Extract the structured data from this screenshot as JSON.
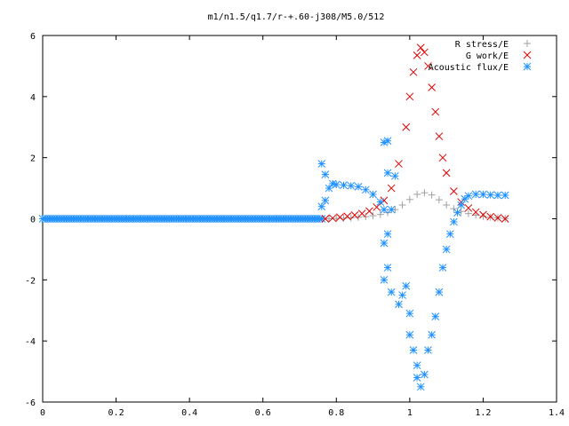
{
  "chart_data": {
    "type": "scatter",
    "title": "m1/n1.5/q1.7/r-+.60-j308/M5.0/512",
    "xlabel": "",
    "ylabel": "",
    "xlim": [
      0,
      1.4
    ],
    "ylim": [
      -6,
      6
    ],
    "xticks": [
      "0",
      "0.2",
      "0.4",
      "0.6",
      "0.8",
      "1",
      "1.2",
      "1.4"
    ],
    "yticks": [
      "-6",
      "-4",
      "-2",
      "0",
      "2",
      "4",
      "6"
    ],
    "grid": false,
    "legend_position": "top-right",
    "series": [
      {
        "name": "R stress/E",
        "marker": "plus",
        "color": "#a0a0a0",
        "points": [
          [
            0.78,
            0.0
          ],
          [
            0.8,
            0.01
          ],
          [
            0.82,
            0.02
          ],
          [
            0.84,
            0.03
          ],
          [
            0.86,
            0.05
          ],
          [
            0.88,
            0.07
          ],
          [
            0.9,
            0.1
          ],
          [
            0.92,
            0.14
          ],
          [
            0.94,
            0.2
          ],
          [
            0.96,
            0.3
          ],
          [
            0.98,
            0.45
          ],
          [
            1.0,
            0.63
          ],
          [
            1.02,
            0.8
          ],
          [
            1.04,
            0.85
          ],
          [
            1.06,
            0.78
          ],
          [
            1.08,
            0.62
          ],
          [
            1.1,
            0.45
          ],
          [
            1.12,
            0.33
          ],
          [
            1.14,
            0.24
          ],
          [
            1.16,
            0.17
          ],
          [
            1.18,
            0.12
          ],
          [
            1.2,
            0.08
          ],
          [
            1.22,
            0.05
          ],
          [
            1.24,
            0.03
          ],
          [
            1.26,
            0.01
          ]
        ]
      },
      {
        "name": "G work/E",
        "marker": "cross",
        "color": "#e00000",
        "points": [
          [
            0.77,
            0.0
          ],
          [
            0.79,
            0.02
          ],
          [
            0.81,
            0.05
          ],
          [
            0.83,
            0.08
          ],
          [
            0.85,
            0.12
          ],
          [
            0.87,
            0.17
          ],
          [
            0.89,
            0.25
          ],
          [
            0.91,
            0.38
          ],
          [
            0.93,
            0.6
          ],
          [
            0.95,
            1.0
          ],
          [
            0.97,
            1.8
          ],
          [
            0.99,
            3.0
          ],
          [
            1.0,
            4.0
          ],
          [
            1.01,
            4.8
          ],
          [
            1.02,
            5.35
          ],
          [
            1.03,
            5.6
          ],
          [
            1.04,
            5.45
          ],
          [
            1.05,
            5.0
          ],
          [
            1.06,
            4.3
          ],
          [
            1.07,
            3.5
          ],
          [
            1.08,
            2.7
          ],
          [
            1.09,
            2.0
          ],
          [
            1.1,
            1.5
          ],
          [
            1.12,
            0.9
          ],
          [
            1.14,
            0.55
          ],
          [
            1.16,
            0.35
          ],
          [
            1.18,
            0.22
          ],
          [
            1.2,
            0.13
          ],
          [
            1.22,
            0.07
          ],
          [
            1.24,
            0.03
          ],
          [
            1.26,
            0.0
          ]
        ]
      },
      {
        "name": "Acoustic flux/E",
        "marker": "star",
        "color": "#1e90ff",
        "points": [
          [
            0.76,
            1.8
          ],
          [
            0.77,
            1.45
          ],
          [
            0.78,
            1.0
          ],
          [
            0.79,
            1.15
          ],
          [
            0.8,
            1.12
          ],
          [
            0.82,
            1.1
          ],
          [
            0.84,
            1.08
          ],
          [
            0.86,
            1.05
          ],
          [
            0.88,
            0.95
          ],
          [
            0.9,
            0.8
          ],
          [
            0.92,
            0.55
          ],
          [
            0.93,
            0.3
          ],
          [
            0.76,
            0.4
          ],
          [
            0.77,
            0.6
          ],
          [
            0.94,
            1.5
          ],
          [
            0.93,
            2.5
          ],
          [
            0.94,
            2.55
          ],
          [
            0.96,
            1.4
          ],
          [
            0.95,
            0.3
          ],
          [
            0.94,
            -0.5
          ],
          [
            0.93,
            -0.8
          ],
          [
            0.94,
            -1.6
          ],
          [
            0.93,
            -2.0
          ],
          [
            0.95,
            -2.4
          ],
          [
            0.97,
            -2.8
          ],
          [
            0.98,
            -2.5
          ],
          [
            0.99,
            -2.2
          ],
          [
            1.0,
            -3.1
          ],
          [
            1.0,
            -3.8
          ],
          [
            1.01,
            -4.3
          ],
          [
            1.02,
            -4.8
          ],
          [
            1.02,
            -5.2
          ],
          [
            1.03,
            -5.5
          ],
          [
            1.04,
            -5.1
          ],
          [
            1.05,
            -4.3
          ],
          [
            1.06,
            -3.8
          ],
          [
            1.07,
            -3.2
          ],
          [
            1.08,
            -2.4
          ],
          [
            1.09,
            -1.6
          ],
          [
            1.1,
            -1.0
          ],
          [
            1.11,
            -0.5
          ],
          [
            1.12,
            -0.1
          ],
          [
            1.13,
            0.2
          ],
          [
            1.14,
            0.45
          ],
          [
            1.15,
            0.65
          ],
          [
            1.16,
            0.75
          ],
          [
            1.18,
            0.8
          ],
          [
            1.2,
            0.8
          ],
          [
            1.22,
            0.78
          ],
          [
            1.24,
            0.77
          ],
          [
            1.26,
            0.77
          ]
        ]
      }
    ]
  }
}
